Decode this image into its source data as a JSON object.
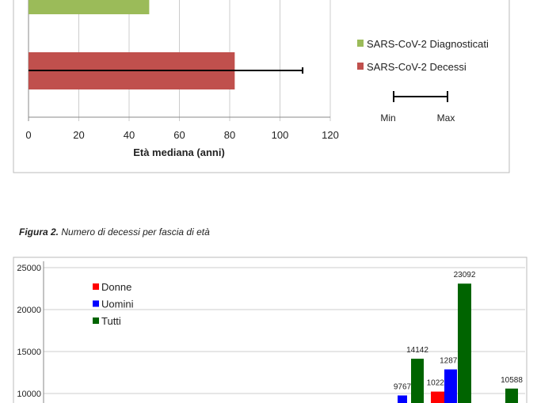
{
  "chart_data": [
    {
      "type": "bar",
      "orientation": "horizontal",
      "xlabel": "Età mediana (anni)",
      "xlim": [
        0,
        120
      ],
      "xticks": [
        "0",
        "20",
        "40",
        "60",
        "80",
        "100",
        "120"
      ],
      "series": [
        {
          "name": "SARS-CoV-2 Diagnosticati",
          "value": 48,
          "color": "#9bbb59"
        },
        {
          "name": "SARS-CoV-2 Decessi",
          "value": 82,
          "min": 0,
          "max": 109,
          "color": "#c0504d"
        }
      ],
      "legend_errorbar": {
        "min_label": "Min",
        "max_label": "Max"
      },
      "grid": true,
      "legend": "right"
    },
    {
      "type": "bar",
      "caption_bold": "Figura 2.",
      "caption": "Numero di decessi per fascia di età",
      "ylim": [
        0,
        25000
      ],
      "yticks": [
        "25000",
        "20000",
        "15000",
        "10000"
      ],
      "legend": "top-left",
      "series": [
        {
          "name": "Donne",
          "color": "#ff0000"
        },
        {
          "name": "Uomini",
          "color": "#0000ff"
        },
        {
          "name": "Tutti",
          "color": "#006400"
        }
      ],
      "visible_bars": [
        {
          "series": "Uomini",
          "value": 9767,
          "label": "9767"
        },
        {
          "series": "Tutti",
          "value": 14142,
          "label": "14142"
        },
        {
          "series": "Donne",
          "value": 10228,
          "label": "10228"
        },
        {
          "series": "Uomini",
          "value": 12872,
          "label": "12872"
        },
        {
          "series": "Tutti",
          "value": 23092,
          "label": "23092"
        },
        {
          "series": "Tutti",
          "value": 10588,
          "label": "10588"
        }
      ]
    }
  ]
}
